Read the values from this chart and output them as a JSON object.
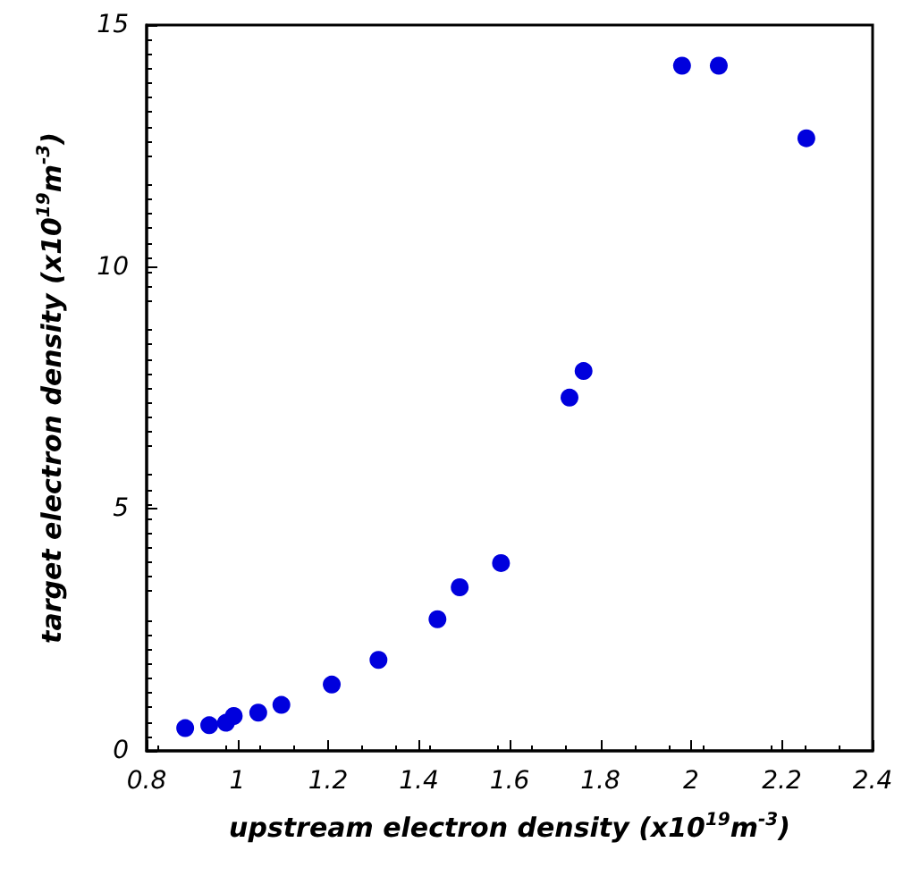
{
  "chart_data": {
    "type": "scatter",
    "xlabel": "upstream electron density (x10$^{19}$m$^{-3}$)",
    "ylabel": "target electron density (x10$^{19}$m$^{-3}$)",
    "x": [
      0.885,
      0.938,
      0.975,
      0.992,
      1.046,
      1.097,
      1.208,
      1.311,
      1.441,
      1.49,
      1.581,
      1.732,
      1.763,
      1.98,
      2.061,
      2.254
    ],
    "values": [
      0.47,
      0.53,
      0.58,
      0.72,
      0.79,
      0.95,
      1.37,
      1.88,
      2.72,
      3.38,
      3.88,
      7.3,
      7.85,
      14.16,
      14.16,
      12.66
    ],
    "color": "#0000dd",
    "marker": "circle",
    "xlim": [
      0.8,
      2.4
    ],
    "xticks": [
      0.8,
      1,
      1.2,
      1.4,
      1.6,
      1.8,
      2,
      2.2,
      2.4
    ],
    "ylim": [
      0,
      15
    ],
    "yticks": [
      0,
      5,
      10,
      15
    ]
  }
}
